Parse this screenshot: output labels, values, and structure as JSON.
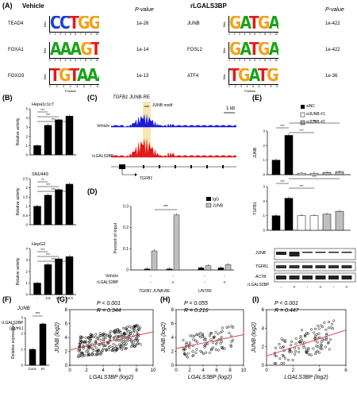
{
  "panel_A": {
    "label": "(A)",
    "left_title": "Vehicle",
    "right_title": "rLGALS3BP",
    "pvalue_header": "P-value",
    "position_label": "Position",
    "bits_label": "Bits",
    "left_rows": [
      {
        "tf": "TEAD4",
        "motif": "CCTGGAATGC",
        "p": "1e-28"
      },
      {
        "tf": "FOXA1",
        "motif": "AAAGTAAACA",
        "p": "1e-14"
      },
      {
        "tf": "FOXO3",
        "motif": "TGTAAACA",
        "p": "1e-13"
      }
    ],
    "right_rows": [
      {
        "tf": "JUNB",
        "motif": "GATGACTCAT",
        "p": "1e-422"
      },
      {
        "tf": "FOSL2",
        "motif": "GATGACTCAC",
        "p": "1e-422"
      },
      {
        "tf": "ATF4",
        "motif": "TGATGCAAT",
        "p": "1e-36"
      }
    ]
  },
  "panel_B": {
    "label": "(B)",
    "ylabel": "Relative activity",
    "xlabel": "rLGALS3BP",
    "xunit": "(μg/mL)",
    "x_ticks": [
      "-",
      "2.5",
      "5.0",
      "10.0"
    ]
  },
  "panel_C": {
    "label": "(C)",
    "gene_title": "TGFB1",
    "re_title": "JUNB-RE",
    "motif_label": "JUNB motif",
    "scale_label": "1 kb",
    "track1": "Vehicle",
    "track2": "rLGALS3BP",
    "gene_label": "TGFB1"
  },
  "panel_D": {
    "label": "(D)",
    "ylabel": "Percent of input",
    "legend": [
      "IgG",
      "JUNB"
    ],
    "row1": "Vehicle",
    "row2": "rLGALS3BP",
    "group1": "TGFB1 JUNB-RE",
    "group2": "UNTR6",
    "sig": "***"
  },
  "panel_E": {
    "label": "(E)",
    "legend": [
      "siNC",
      "siJUNB #1",
      "siJUNB #2"
    ],
    "ylabel_top": "JUNB",
    "ylabel_bottom": "TGFB1",
    "blot_labels": [
      "JUNB",
      "TGFB1",
      "ACTB"
    ],
    "treatment": "rLGALS3BP",
    "signs": [
      "-",
      "+",
      "-",
      "+",
      "-",
      "+"
    ]
  },
  "panel_F": {
    "label": "(F)",
    "title": "JUNB",
    "ylabel": "Relative expression",
    "x_ticks": [
      "Cont.",
      "KI"
    ],
    "sig": "***"
  },
  "scatter_common": {
    "xlabel": "LGALS3BP (log2)",
    "ylabel": "JUNB (log2)"
  },
  "panel_G": {
    "label": "(G)",
    "p": "P < 0.001",
    "r": "R = 0.344"
  },
  "panel_H": {
    "label": "(H)",
    "p": "P = 0.055",
    "r": "R = 0.216"
  },
  "panel_I": {
    "label": "(I)",
    "p": "P < 0.001",
    "r": "R = 0.447"
  },
  "colors": {
    "blue": "#1a1adb",
    "red": "#e21a1a",
    "highlight": "#f7e7b0",
    "grey": "#bfbfbf",
    "fit": "#d94040"
  },
  "chart_data": [
    {
      "type": "bar",
      "panel": "B",
      "subtitle": "Hepa1c1c7",
      "categories": [
        "-",
        "2.5",
        "5.0",
        "10.0"
      ],
      "values": [
        1.0,
        3.2,
        3.8,
        4.2
      ],
      "ylim": [
        0,
        5
      ],
      "yticks": [
        0,
        1,
        2,
        3,
        4,
        5
      ],
      "sig": [
        "***",
        "***",
        "***"
      ],
      "ylabel": "Relative activity"
    },
    {
      "type": "bar",
      "panel": "B",
      "subtitle": "SNU449",
      "categories": [
        "-",
        "2.5",
        "5.0",
        "10.0"
      ],
      "values": [
        1.0,
        1.6,
        1.9,
        2.2
      ],
      "ylim": [
        0,
        2.5
      ],
      "yticks": [
        0,
        0.5,
        1.0,
        1.5,
        2.0,
        2.5
      ],
      "sig": [
        "**",
        "***",
        "***"
      ],
      "ylabel": "Relative activity"
    },
    {
      "type": "bar",
      "panel": "B",
      "subtitle": "HepG2",
      "categories": [
        "-",
        "2.5",
        "5.0",
        "10.0"
      ],
      "values": [
        1.0,
        2.6,
        3.1,
        3.3
      ],
      "ylim": [
        0,
        4
      ],
      "yticks": [
        0,
        1,
        2,
        3,
        4
      ],
      "sig": [
        "***",
        "***",
        "***"
      ],
      "ylabel": "Relative activity"
    },
    {
      "type": "bar",
      "panel": "D",
      "categories": [
        "Vehicle",
        "rLGALS3BP",
        "Vehicle",
        "rLGALS3BP"
      ],
      "series": [
        {
          "name": "IgG",
          "values": [
            0.005,
            0.005,
            0.01,
            0.01
          ]
        },
        {
          "name": "JUNB",
          "values": [
            0.09,
            0.26,
            0.02,
            0.025
          ]
        }
      ],
      "ylim": [
        0,
        0.3
      ],
      "yticks": [
        0,
        0.1,
        0.2,
        0.3
      ]
    },
    {
      "type": "bar",
      "panel": "E",
      "subtitle": "JUNB",
      "categories": [
        "siNC -",
        "siNC +",
        "siJUNB#1 -",
        "siJUNB#1 +",
        "siJUNB#2 -",
        "siJUNB#2 +"
      ],
      "values": [
        1.0,
        2.7,
        0.1,
        0.1,
        0.15,
        0.2
      ],
      "ylim": [
        0,
        3
      ],
      "yticks": [
        0,
        1,
        2,
        3
      ]
    },
    {
      "type": "bar",
      "panel": "E",
      "subtitle": "TGFB1",
      "categories": [
        "siNC -",
        "siNC +",
        "siJUNB#1 -",
        "siJUNB#1 +",
        "siJUNB#2 -",
        "siJUNB#2 +"
      ],
      "values": [
        1.0,
        2.2,
        1.0,
        1.0,
        1.1,
        1.3
      ],
      "ylim": [
        0,
        3
      ],
      "yticks": [
        0,
        1,
        2,
        3
      ]
    },
    {
      "type": "bar",
      "panel": "F",
      "categories": [
        "Cont.",
        "KI"
      ],
      "values": [
        1.0,
        2.6
      ],
      "ylim": [
        0,
        3
      ],
      "yticks": [
        0,
        1,
        2,
        3
      ]
    },
    {
      "type": "scatter",
      "panel": "G",
      "xlim": [
        0,
        10
      ],
      "ylim": [
        0,
        8
      ],
      "xticks": [
        0,
        2,
        4,
        6,
        8,
        10
      ],
      "yticks": [
        0,
        2,
        4,
        6,
        8
      ],
      "fit": [
        [
          0,
          2.2
        ],
        [
          10,
          4.8
        ]
      ]
    },
    {
      "type": "scatter",
      "panel": "H",
      "xlim": [
        0,
        10
      ],
      "ylim": [
        0,
        8
      ],
      "xticks": [
        0,
        2,
        4,
        6,
        8,
        10
      ],
      "yticks": [
        0,
        2,
        4,
        6,
        8
      ],
      "fit": [
        [
          0,
          2.4
        ],
        [
          10,
          4.4
        ]
      ]
    },
    {
      "type": "scatter",
      "panel": "I",
      "xlim": [
        0,
        6
      ],
      "ylim": [
        0,
        6
      ],
      "xticks": [
        0,
        2,
        4,
        6
      ],
      "yticks": [
        0,
        2,
        4,
        6
      ],
      "fit": [
        [
          0,
          1.0
        ],
        [
          6,
          3.8
        ]
      ]
    }
  ]
}
